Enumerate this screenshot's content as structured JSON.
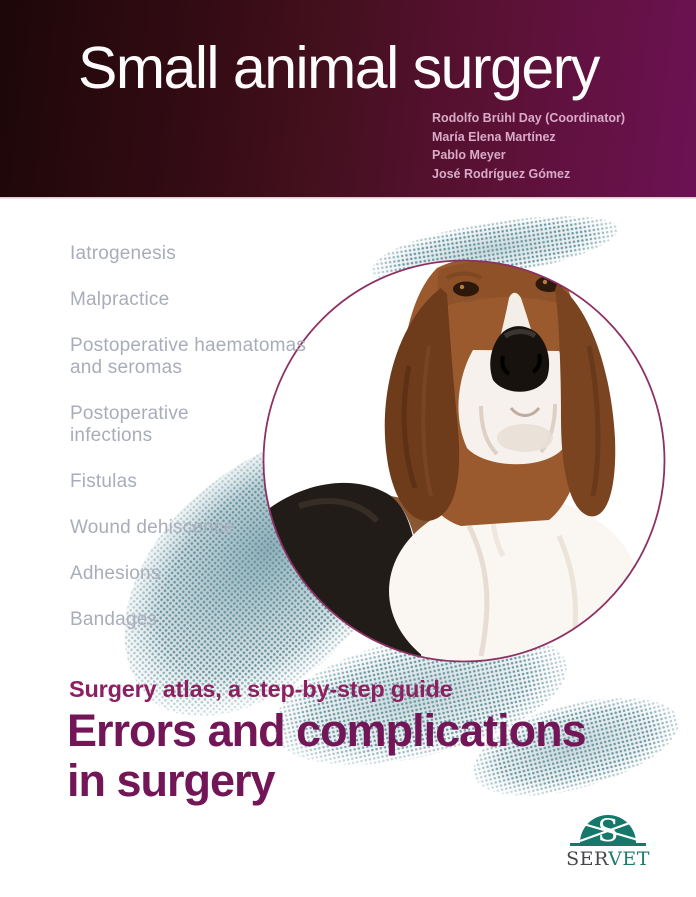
{
  "cover": {
    "masthead": {
      "title": "Small animal surgery",
      "authors": [
        "Rodolfo Brühl Day (Coordinator)",
        "María Elena Martínez",
        "Pablo Meyer",
        "José Rodríguez Gómez"
      ]
    },
    "topics": [
      "Iatrogenesis",
      "Malpractice",
      "Postoperative haematomas\nand seromas",
      "Postoperative\ninfections",
      "Fistulas",
      "Wound dehiscence",
      "Adhesions",
      "Bandages"
    ],
    "tagline": "Surgery atlas, a step-by-step guide",
    "main_title_lines": [
      "Errors and complications",
      "in surgery"
    ],
    "figure": {
      "subject": "basset-hound-portrait",
      "frame": "circular-ring"
    },
    "publisher": {
      "monogram": "S",
      "wordmark_prefix": "SER",
      "wordmark_suffix": "VET"
    },
    "colors": {
      "masthead_left": "#1d0708",
      "masthead_right": "#6c1254",
      "title_white": "#fcfcfd",
      "authors_pink": "#d9abc8",
      "topics_gray": "#a9adbb",
      "tagline_purple": "#8c2161",
      "main_title_purple": "#731657",
      "ring_purple": "#8d3164",
      "halftone_teal": "#6f9aa5",
      "publisher_teal": "#15786a",
      "publisher_dark": "#47474b"
    }
  }
}
